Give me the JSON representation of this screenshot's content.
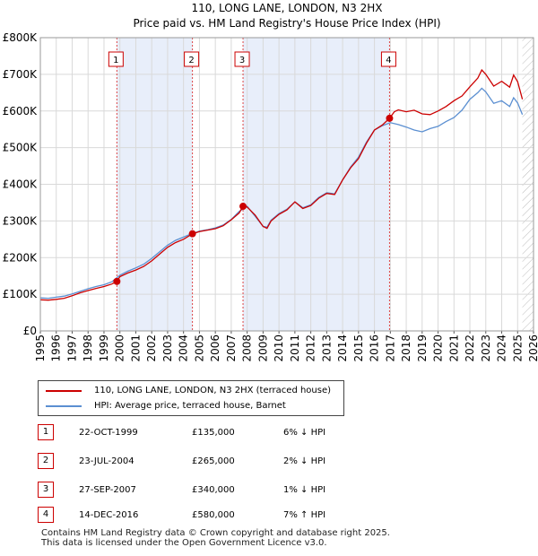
{
  "chart_data": {
    "type": "line",
    "title": "110, LONG LANE, LONDON, N3 2HX",
    "subtitle": "Price paid vs. HM Land Registry's House Price Index (HPI)",
    "xlabel": "",
    "ylabel": "",
    "xlim": [
      1995,
      2026
    ],
    "ylim": [
      0,
      800000
    ],
    "x_ticks": [
      1995,
      1996,
      1997,
      1998,
      1999,
      2000,
      2001,
      2002,
      2003,
      2004,
      2005,
      2006,
      2007,
      2008,
      2009,
      2010,
      2011,
      2012,
      2013,
      2014,
      2015,
      2016,
      2017,
      2018,
      2019,
      2020,
      2021,
      2022,
      2023,
      2024,
      2025,
      2026
    ],
    "y_ticks": [
      0,
      100000,
      200000,
      300000,
      400000,
      500000,
      600000,
      700000,
      800000
    ],
    "y_tick_labels": [
      "£0",
      "£100K",
      "£200K",
      "£300K",
      "£400K",
      "£500K",
      "£600K",
      "£700K",
      "£800K"
    ],
    "series": [
      {
        "name": "110, LONG LANE, LONDON, N3 2HX (terraced house)",
        "color": "#cc0000",
        "x": [
          1995.0,
          1995.5,
          1996.0,
          1996.5,
          1997.0,
          1997.5,
          1998.0,
          1998.5,
          1999.0,
          1999.5,
          1999.81,
          2000.0,
          2000.5,
          2001.0,
          2001.5,
          2002.0,
          2002.5,
          2003.0,
          2003.5,
          2004.0,
          2004.56,
          2005.0,
          2005.5,
          2006.0,
          2006.5,
          2007.0,
          2007.5,
          2007.74,
          2008.0,
          2008.5,
          2009.0,
          2009.25,
          2009.5,
          2010.0,
          2010.5,
          2011.0,
          2011.5,
          2012.0,
          2012.5,
          2013.0,
          2013.5,
          2014.0,
          2014.5,
          2015.0,
          2015.5,
          2016.0,
          2016.5,
          2016.95,
          2017.25,
          2017.5,
          2018.0,
          2018.5,
          2019.0,
          2019.5,
          2020.0,
          2020.5,
          2021.0,
          2021.5,
          2022.0,
          2022.5,
          2022.75,
          2023.0,
          2023.5,
          2024.0,
          2024.5,
          2024.75,
          2025.0,
          2025.3
        ],
        "values": [
          85000,
          84000,
          86000,
          89000,
          96000,
          104000,
          110000,
          116000,
          121000,
          128000,
          135000,
          148000,
          158000,
          166000,
          176000,
          191000,
          210000,
          228000,
          241000,
          250000,
          265000,
          271000,
          275000,
          279000,
          287000,
          303000,
          322000,
          340000,
          338000,
          316000,
          285000,
          280000,
          300000,
          318000,
          330000,
          352000,
          334000,
          342000,
          362000,
          375000,
          372000,
          412000,
          445000,
          470000,
          512000,
          548000,
          562000,
          580000,
          598000,
          603000,
          598000,
          602000,
          592000,
          590000,
          600000,
          612000,
          628000,
          641000,
          666000,
          690000,
          712000,
          700000,
          668000,
          681000,
          665000,
          698000,
          680000,
          632000
        ]
      },
      {
        "name": "HPI: Average price, terraced house, Barnet",
        "color": "#5b8fd1",
        "x": [
          1995.0,
          1995.5,
          1996.0,
          1996.5,
          1997.0,
          1997.5,
          1998.0,
          1998.5,
          1999.0,
          1999.5,
          2000.0,
          2000.5,
          2001.0,
          2001.5,
          2002.0,
          2002.5,
          2003.0,
          2003.5,
          2004.0,
          2004.5,
          2005.0,
          2005.5,
          2006.0,
          2006.5,
          2007.0,
          2007.5,
          2008.0,
          2008.5,
          2009.0,
          2009.25,
          2009.5,
          2010.0,
          2010.5,
          2011.0,
          2011.5,
          2012.0,
          2012.5,
          2013.0,
          2013.5,
          2014.0,
          2014.5,
          2015.0,
          2015.5,
          2016.0,
          2016.5,
          2017.0,
          2017.5,
          2018.0,
          2018.5,
          2019.0,
          2019.5,
          2020.0,
          2020.5,
          2021.0,
          2021.5,
          2022.0,
          2022.5,
          2022.75,
          2023.0,
          2023.5,
          2024.0,
          2024.5,
          2024.75,
          2025.0,
          2025.3
        ],
        "values": [
          90000,
          89000,
          92000,
          95000,
          101000,
          108000,
          115000,
          121000,
          126000,
          134000,
          152000,
          163000,
          172000,
          182000,
          198000,
          216000,
          234000,
          247000,
          256000,
          265000,
          272000,
          276000,
          281000,
          289000,
          304000,
          326000,
          340000,
          313000,
          285000,
          283000,
          302000,
          320000,
          332000,
          352000,
          336000,
          344000,
          364000,
          377000,
          374000,
          412000,
          447000,
          474000,
          515000,
          548000,
          560000,
          568000,
          563000,
          556000,
          548000,
          543000,
          552000,
          558000,
          571000,
          582000,
          602000,
          632000,
          650000,
          662000,
          652000,
          621000,
          628000,
          612000,
          636000,
          622000,
          590000
        ]
      }
    ],
    "transactions": [
      {
        "num": "1",
        "year": 1999.81,
        "price": 135000,
        "date": "22-OCT-1999",
        "price_label": "£135,000",
        "hpi": "6% ↓ HPI"
      },
      {
        "num": "2",
        "year": 2004.56,
        "price": 265000,
        "date": "23-JUL-2004",
        "price_label": "£265,000",
        "hpi": "2% ↓ HPI"
      },
      {
        "num": "3",
        "year": 2007.74,
        "price": 340000,
        "date": "27-SEP-2007",
        "price_label": "£340,000",
        "hpi": "1% ↓ HPI"
      },
      {
        "num": "4",
        "year": 2016.95,
        "price": 580000,
        "date": "14-DEC-2016",
        "price_label": "£580,000",
        "hpi": "7% ↑ HPI"
      }
    ],
    "shaded_spans": [
      [
        1999.81,
        2004.56
      ],
      [
        2007.74,
        2016.95
      ]
    ],
    "future_from": 2025.3
  },
  "legend": {
    "property_label": "110, LONG LANE, LONDON, N3 2HX (terraced house)",
    "hpi_label": "HPI: Average price, terraced house, Barnet"
  },
  "footer": {
    "line1": "Contains HM Land Registry data © Crown copyright and database right 2025.",
    "line2": "This data is licensed under the Open Government Licence v3.0."
  }
}
